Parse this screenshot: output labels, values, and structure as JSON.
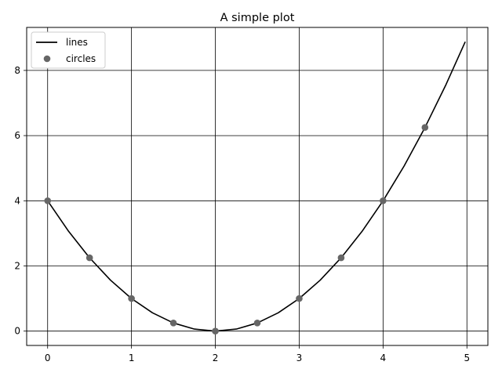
{
  "chart_data": {
    "type": "line",
    "title": "A simple plot",
    "xlabel": "",
    "ylabel": "",
    "xlim": [
      -0.25,
      5.25
    ],
    "ylim": [
      -0.44,
      9.32
    ],
    "xticks": [
      0,
      1,
      2,
      3,
      4,
      5
    ],
    "yticks": [
      0,
      2,
      4,
      6,
      8
    ],
    "grid": true,
    "legend": {
      "placement": "top-left",
      "entries": [
        {
          "label": "lines",
          "style": "line",
          "color": "#000000"
        },
        {
          "label": "circles",
          "style": "marker",
          "color": "#666666"
        }
      ]
    },
    "series": [
      {
        "name": "lines",
        "kind": "line",
        "color": "#000000",
        "function": "(x-2)^2",
        "x": [
          0.0,
          0.25,
          0.5,
          0.75,
          1.0,
          1.25,
          1.5,
          1.75,
          2.0,
          2.25,
          2.5,
          2.75,
          3.0,
          3.25,
          3.5,
          3.75,
          4.0,
          4.25,
          4.5,
          4.75,
          4.98
        ],
        "y": [
          4.0,
          3.0625,
          2.25,
          1.5625,
          1.0,
          0.5625,
          0.25,
          0.0625,
          0.0,
          0.0625,
          0.25,
          0.5625,
          1.0,
          1.5625,
          2.25,
          3.0625,
          4.0,
          5.0625,
          6.25,
          7.5625,
          8.88
        ]
      },
      {
        "name": "circles",
        "kind": "scatter",
        "color": "#666666",
        "x": [
          0,
          0.5,
          1,
          1.5,
          2,
          2.5,
          3,
          3.5,
          4,
          4.5
        ],
        "y": [
          4,
          2.25,
          1,
          0.25,
          0,
          0.25,
          1,
          2.25,
          4,
          6.25
        ]
      }
    ]
  }
}
